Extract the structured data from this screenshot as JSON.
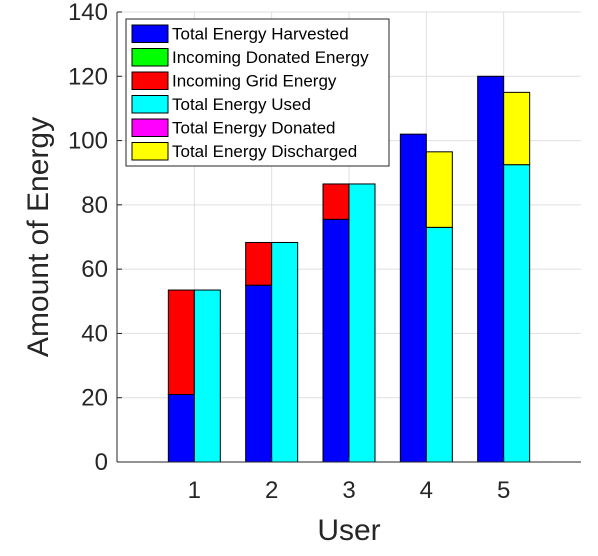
{
  "chart_data": {
    "type": "bar",
    "subtype": "stacked-grouped",
    "title": "",
    "xlabel": "User",
    "ylabel": "Amount of Energy",
    "categories": [
      "1",
      "2",
      "3",
      "4",
      "5"
    ],
    "ylim": [
      0,
      140
    ],
    "yticks": [
      0,
      20,
      40,
      60,
      80,
      100,
      120,
      140
    ],
    "grid": true,
    "legend_position": "top-left",
    "series": [
      {
        "name": "Total Energy Harvested",
        "color": "#0000ff",
        "stack": "received",
        "values": [
          21,
          55,
          75.5,
          102,
          120
        ]
      },
      {
        "name": "Incoming Donated Energy",
        "color": "#00ff00",
        "stack": "received",
        "values": [
          0,
          0,
          0,
          0,
          0
        ]
      },
      {
        "name": "Incoming Grid Energy",
        "color": "#ff0000",
        "stack": "received",
        "values": [
          32.5,
          13.3,
          11,
          0,
          0
        ]
      },
      {
        "name": "Total Energy Used",
        "color": "#00ffff",
        "stack": "spent",
        "values": [
          53.5,
          68.3,
          86.5,
          73,
          92.5
        ]
      },
      {
        "name": "Total Energy Donated",
        "color": "#ff00ff",
        "stack": "spent",
        "values": [
          0,
          0,
          0,
          0,
          0
        ]
      },
      {
        "name": "Total Energy Discharged",
        "color": "#ffff00",
        "stack": "spent",
        "values": [
          0,
          0,
          0,
          23.5,
          22.5
        ]
      }
    ]
  }
}
